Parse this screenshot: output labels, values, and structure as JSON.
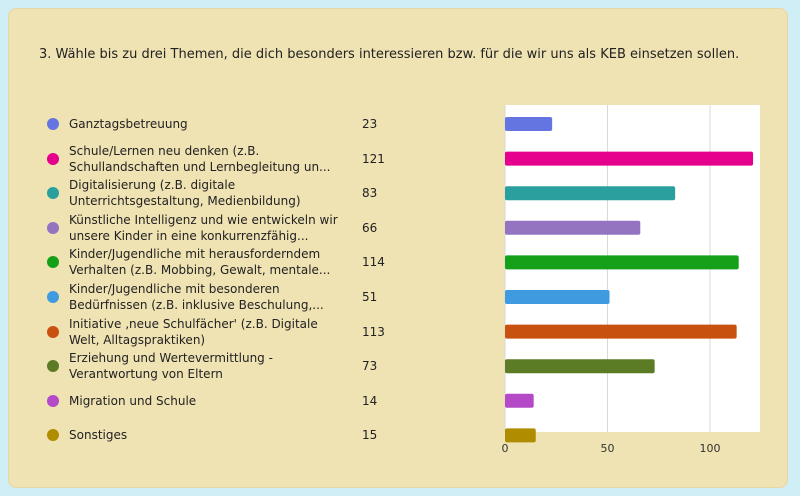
{
  "question": "3. Wähle bis zu drei Themen, die dich besonders interessieren bzw. für die wir uns als KEB einsetzen sollen.",
  "chart_data": {
    "type": "bar",
    "orientation": "horizontal",
    "xlim": [
      0,
      125
    ],
    "xticks": [
      "0",
      "50",
      "100"
    ],
    "grid": true,
    "series": [
      {
        "label": "Ganztagsbetreuung",
        "value": 23,
        "color": "#6475e2"
      },
      {
        "label": "Schule/Lernen neu denken (z.B. Schullandschaften und Lernbegleitung un...",
        "value": 121,
        "color": "#e4008c"
      },
      {
        "label": "Digitalisierung (z.B. digitale Unterrichtsgestaltung, Medienbildung)",
        "value": 83,
        "color": "#2aa09e"
      },
      {
        "label": "Künstliche Intelligenz und wie entwickeln wir unsere Kinder in eine konkurrenzfähig...",
        "value": 66,
        "color": "#9473c1"
      },
      {
        "label": "Kinder/Jugendliche mit herausforderndem Verhalten (z.B. Mobbing, Gewalt, mentale...",
        "value": 114,
        "color": "#15a01a"
      },
      {
        "label": "Kinder/Jugendliche mit besonderen Bedürfnissen (z.B. inklusive Beschulung,...",
        "value": 51,
        "color": "#3f9ae0"
      },
      {
        "label": "Initiative ‚neue Schulfächer' (z.B. Digitale Welt, Alltagspraktiken)",
        "value": 113,
        "color": "#c9510f"
      },
      {
        "label": "Erziehung und Wertevermittlung - Verantwortung von Eltern",
        "value": 73,
        "color": "#5b7c24"
      },
      {
        "label": "Migration und Schule",
        "value": 14,
        "color": "#b44ac8"
      },
      {
        "label": "Sonstiges",
        "value": 15,
        "color": "#b08c00"
      }
    ]
  }
}
